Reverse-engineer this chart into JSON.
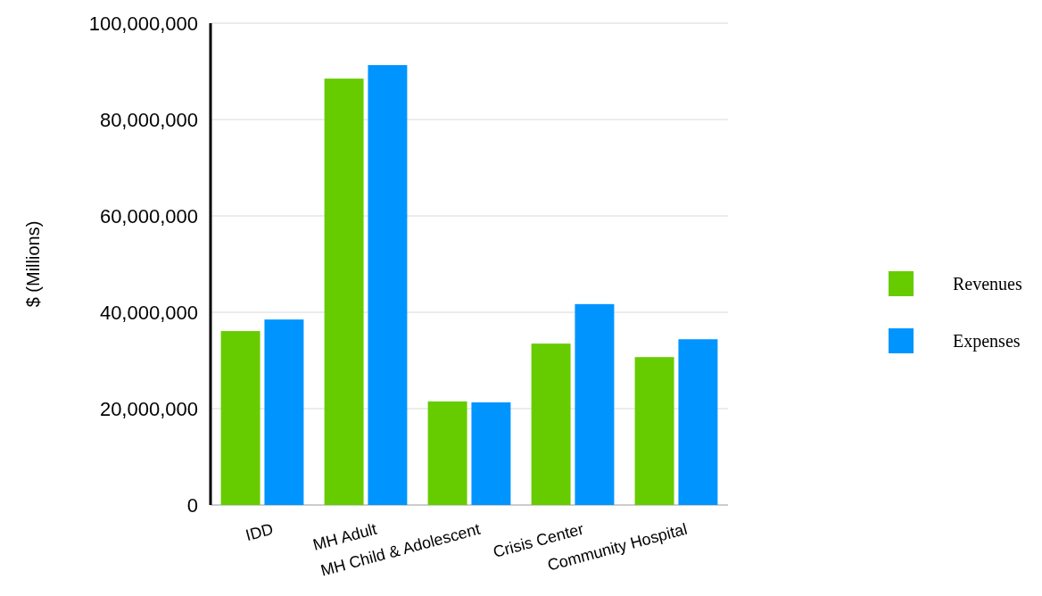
{
  "chart_data": {
    "type": "bar",
    "ylabel": "$ (Millions)",
    "categories": [
      "IDD",
      "MH Adult",
      "MH Child & Adolescent",
      "Crisis Center",
      "Community Hospital"
    ],
    "series": [
      {
        "name": "Revenues",
        "color": "#66cc00",
        "values": [
          36100000,
          88500000,
          21500000,
          33500000,
          30700000
        ]
      },
      {
        "name": "Expenses",
        "color": "#0094ff",
        "values": [
          38500000,
          91300000,
          21300000,
          41700000,
          34400000
        ]
      }
    ],
    "ylim": [
      0,
      100000000
    ],
    "yticks": [
      {
        "value": 0,
        "label": "0"
      },
      {
        "value": 20000000,
        "label": "20,000,000"
      },
      {
        "value": 40000000,
        "label": "40,000,000"
      },
      {
        "value": 60000000,
        "label": "60,000,000"
      },
      {
        "value": 80000000,
        "label": "80,000,000"
      },
      {
        "value": 100000000,
        "label": "100,000,000"
      }
    ],
    "grid": "y",
    "legend": "right"
  }
}
